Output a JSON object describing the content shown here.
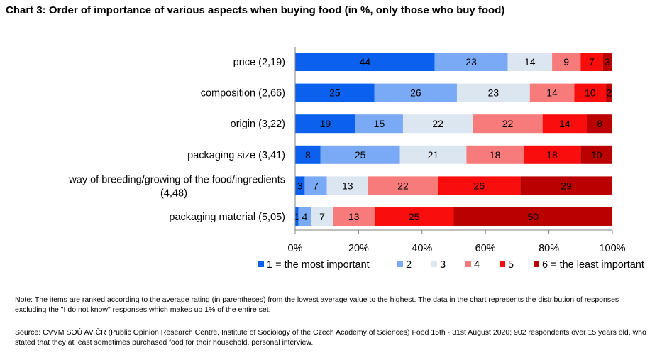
{
  "title": "Chart 3: Order of importance of various aspects when buying food (in %, only those who buy food)",
  "note": "Note: The items are ranked according to the average rating (in parentheses) from the lowest average value to the highest. The data in the chart represents the distribution of responses excluding the \"I do not know\" responses which makes up 1% of the entire set.",
  "source": "Source: CVVM SOÚ AV ČR (Public Opinion Research Centre, Institute of Sociology of the Czech Academy of Sciences) Food 15th - 31st August 2020; 902 respondents over 15 years old, who stated that they at least sometimes purchased food for their household, personal interview.",
  "chart_data": {
    "type": "bar",
    "orientation": "horizontal",
    "stacked": "percent",
    "categories": [
      [
        "price (2,19)"
      ],
      [
        "composition (2,66)"
      ],
      [
        "origin (3,22)"
      ],
      [
        "packaging size (3,41)"
      ],
      [
        "way of breeding/growing of the food/ingredients",
        "(4,48)"
      ],
      [
        "packaging material (5,05)"
      ]
    ],
    "series": [
      {
        "name": "1 = the most important",
        "color": "#0b61ee",
        "values": [
          44,
          25,
          19,
          8,
          3,
          1
        ]
      },
      {
        "name": "2",
        "color": "#7aaaf5",
        "values": [
          23,
          26,
          15,
          25,
          7,
          4
        ]
      },
      {
        "name": "3",
        "color": "#dce6f1",
        "values": [
          14,
          23,
          22,
          21,
          13,
          7
        ]
      },
      {
        "name": "4",
        "color": "#f87b7b",
        "values": [
          9,
          14,
          22,
          18,
          22,
          13
        ]
      },
      {
        "name": "5",
        "color": "#f90d0d",
        "values": [
          7,
          10,
          14,
          18,
          26,
          25
        ]
      },
      {
        "name": "6 = the least important",
        "color": "#bb0000",
        "values": [
          3,
          2,
          8,
          10,
          29,
          50
        ]
      }
    ],
    "data_labels": [
      [
        "44",
        "23",
        "14",
        "9",
        "7",
        "3"
      ],
      [
        "25",
        "26",
        "23",
        "14",
        "10",
        "2"
      ],
      [
        "19",
        "15",
        "22",
        "22",
        "14",
        "8"
      ],
      [
        "8",
        "25",
        "21",
        "18",
        "18",
        "10"
      ],
      [
        "3",
        "7",
        "13",
        "22",
        "26",
        "29"
      ],
      [
        "1",
        "4",
        "7",
        "13",
        "25",
        "50"
      ]
    ],
    "x_ticks": [
      "0%",
      "20%",
      "40%",
      "60%",
      "80%",
      "100%"
    ],
    "xlim": [
      0,
      100
    ],
    "legend_position": "bottom",
    "grid": false
  }
}
